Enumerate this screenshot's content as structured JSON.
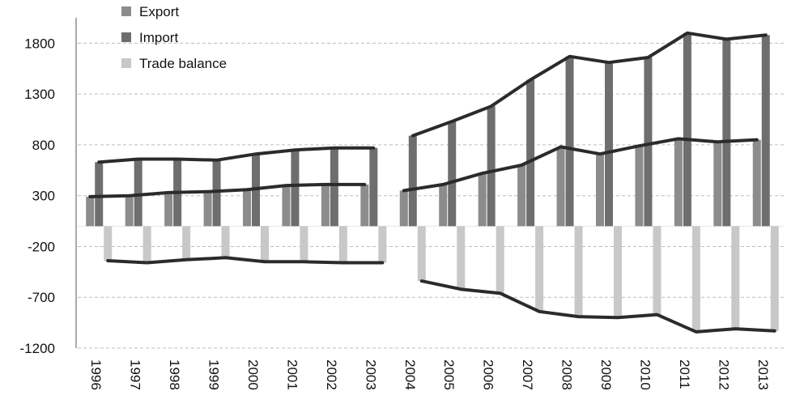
{
  "chart_data": {
    "type": "bar",
    "title": "",
    "xlabel": "",
    "ylabel": "",
    "ylim": [
      -1200,
      2050
    ],
    "yticks": [
      1800,
      1300,
      800,
      300,
      -200,
      -700,
      -1200
    ],
    "grid": true,
    "legend_position": "top-left",
    "categories": [
      "1996",
      "1997",
      "1998",
      "1999",
      "2000",
      "2001",
      "2002",
      "2003",
      "2004",
      "2005",
      "2006",
      "2007",
      "2008",
      "2009",
      "2010",
      "2011",
      "2012",
      "2013"
    ],
    "series": [
      {
        "name": "Export",
        "color": "#8c8c8c",
        "values": [
          290,
          300,
          330,
          340,
          360,
          400,
          410,
          410,
          350,
          410,
          520,
          600,
          780,
          710,
          790,
          860,
          830,
          850
        ]
      },
      {
        "name": "Import",
        "color": "#6e6e6e",
        "values": [
          630,
          660,
          660,
          650,
          710,
          750,
          770,
          770,
          890,
          1030,
          1180,
          1440,
          1670,
          1610,
          1660,
          1900,
          1840,
          1880
        ]
      },
      {
        "name": "Trade balance",
        "color": "#c8c8c8",
        "values": [
          -340,
          -360,
          -330,
          -310,
          -350,
          -350,
          -360,
          -360,
          -540,
          -620,
          -660,
          -840,
          -890,
          -900,
          -870,
          -1040,
          -1010,
          -1030
        ]
      }
    ],
    "trend_lines": [
      {
        "series": "Import",
        "segments": [
          [
            0,
            7
          ],
          [
            8,
            17
          ]
        ]
      },
      {
        "series": "Export",
        "segments": [
          [
            0,
            7
          ],
          [
            8,
            17
          ]
        ]
      },
      {
        "series": "Trade balance",
        "segments": [
          [
            0,
            7
          ],
          [
            8,
            17
          ]
        ]
      }
    ]
  }
}
